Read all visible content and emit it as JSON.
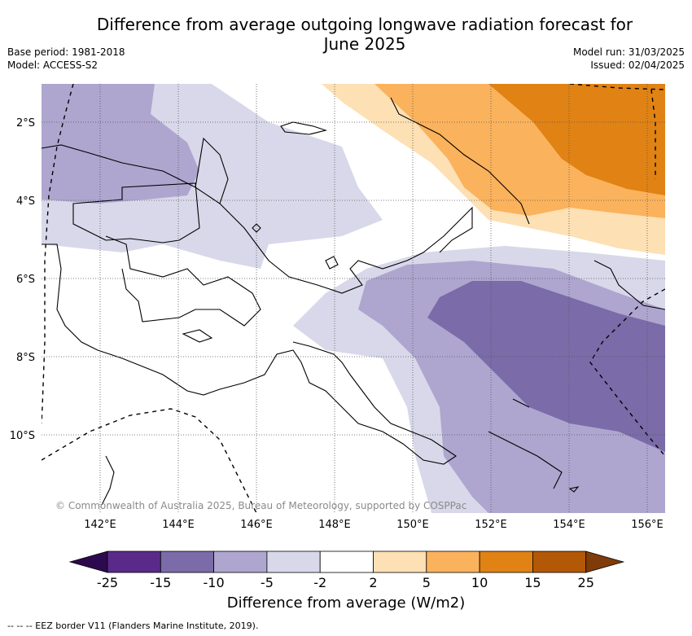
{
  "title": "Difference from average outgoing longwave radiation forecast for\nJune 2025",
  "title_line1": "Difference from average outgoing longwave radiation forecast for",
  "title_line2": "June 2025",
  "base_period": "Base period: 1981-2018",
  "model": "Model: ACCESS-S2",
  "model_run": "Model run: 31/03/2025",
  "issued": "Issued: 02/04/2025",
  "copyright": "© Commonwealth of Australia 2025, Bureau of Meteorology, supported by COSPPac",
  "lat_labels": [
    "2°S",
    "4°S",
    "6°S",
    "8°S",
    "10°S"
  ],
  "lon_labels": [
    "142°E",
    "144°E",
    "146°E",
    "148°E",
    "150°E",
    "152°E",
    "154°E",
    "156°E"
  ],
  "colorbar": {
    "ticks": [
      "-25",
      "-15",
      "-10",
      "-5",
      "-2",
      "2",
      "5",
      "10",
      "15",
      "25"
    ],
    "colors": [
      "#2d0a4e",
      "#5a2a8a",
      "#7b6ba8",
      "#aea6cf",
      "#d8d8ea",
      "#ffffff",
      "#fde0b4",
      "#fbb25c",
      "#e08214",
      "#b35806",
      "#7f3b08"
    ],
    "label": "Difference from average (W/m2)"
  },
  "footnote": "--  --  -- EEZ border V11 (Flanders Marine Institute, 2019).",
  "colors": {
    "vl_purple": "#d8d8ea",
    "l_purple": "#aea6cf",
    "m_purple": "#7b6ba8",
    "vl_orange": "#fde0b4",
    "l_orange": "#fbb25c",
    "m_orange": "#e08214"
  }
}
